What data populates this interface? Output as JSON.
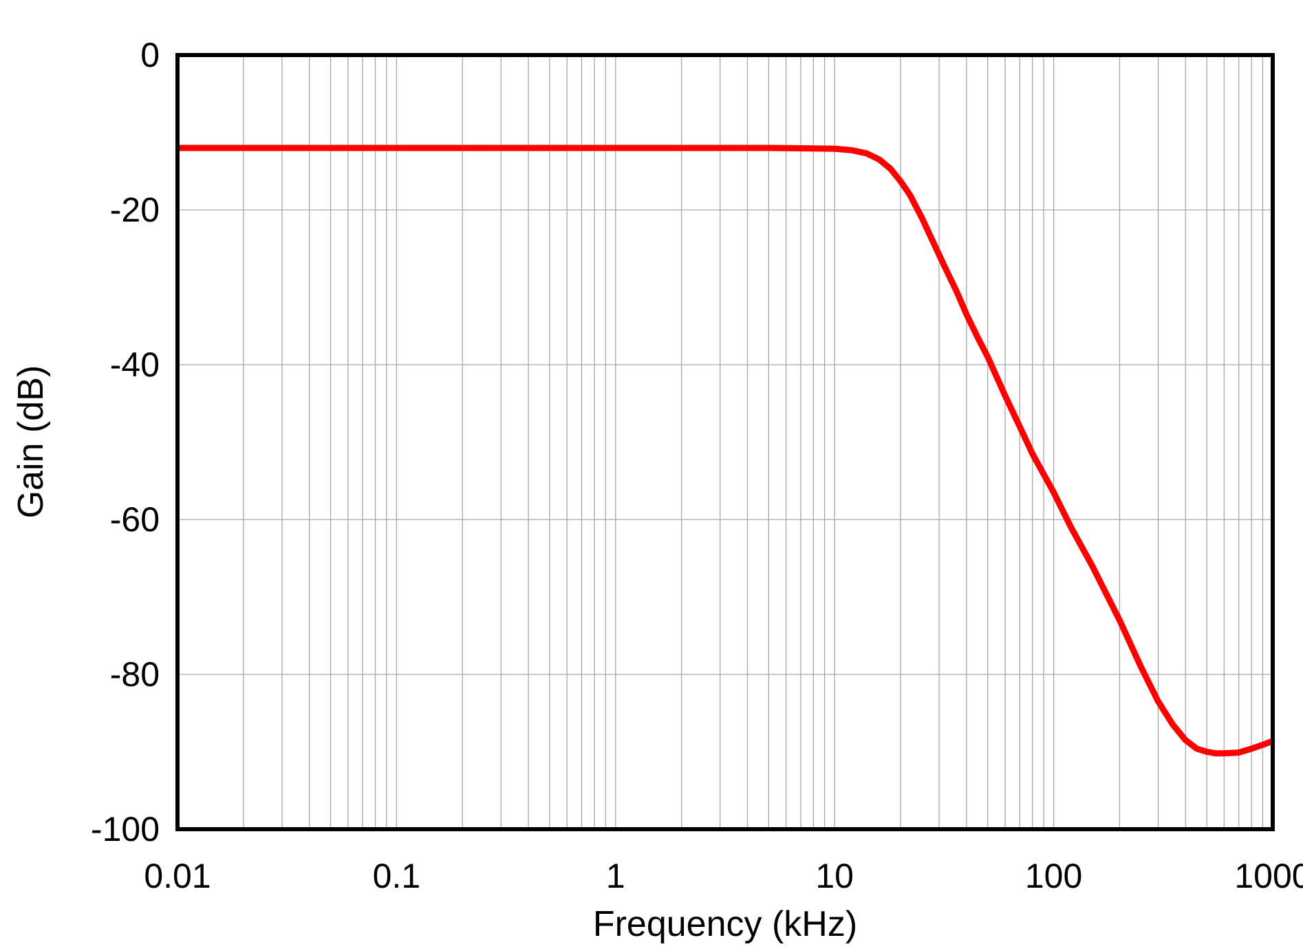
{
  "chart_data": {
    "type": "line",
    "title": "",
    "xlabel": "Frequency (kHz)",
    "ylabel": "Gain (dB)",
    "x_scale": "log",
    "xlim": [
      0.01,
      1000
    ],
    "ylim": [
      -100,
      0
    ],
    "x_ticks": [
      "0.01",
      "0.1",
      "1",
      "10",
      "100",
      "1000"
    ],
    "y_ticks": [
      "0",
      "-20",
      "-40",
      "-60",
      "-80",
      "-100"
    ],
    "grid": true,
    "legend": "none",
    "line_color": "#ff0000",
    "series": [
      {
        "x": [
          0.01,
          0.1,
          1,
          5,
          10,
          12,
          14,
          16,
          18,
          20,
          22,
          25,
          28,
          32,
          36,
          40,
          45,
          50,
          60,
          70,
          80,
          100,
          120,
          150,
          200,
          250,
          300,
          350,
          400,
          450,
          500,
          550,
          600,
          700,
          800,
          900,
          1000
        ],
        "y": [
          -12,
          -12,
          -12,
          -12,
          -12.1,
          -12.3,
          -12.7,
          -13.5,
          -14.7,
          -16.3,
          -18.0,
          -21.0,
          -24.0,
          -27.5,
          -30.5,
          -33.5,
          -36.5,
          -39.0,
          -44.0,
          -48.0,
          -51.5,
          -56.5,
          -61.0,
          -66.0,
          -73.0,
          -79.0,
          -83.5,
          -86.5,
          -88.5,
          -89.6,
          -90.0,
          -90.2,
          -90.2,
          -90.1,
          -89.6,
          -89.1,
          -88.6
        ]
      }
    ]
  }
}
